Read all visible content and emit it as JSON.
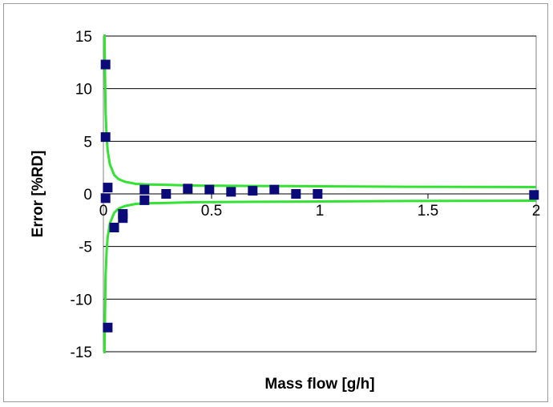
{
  "chart_data": {
    "type": "scatter",
    "xlabel": "Mass flow [g/h]",
    "ylabel": "Error [%RD]",
    "xlim": [
      0,
      2
    ],
    "ylim": [
      -15,
      15
    ],
    "x_ticks": [
      0,
      0.5,
      1,
      1.5,
      2
    ],
    "x_tick_labels": [
      "0",
      "0.5",
      "1",
      "1.5",
      "2"
    ],
    "y_ticks": [
      15,
      10,
      5,
      0,
      -5,
      -10,
      -15
    ],
    "y_tick_labels": [
      "15",
      "10",
      "5",
      "0",
      "-5",
      "-10",
      "-15"
    ],
    "grid": "horizontal",
    "legend": "none",
    "colors": {
      "marker": "#0a0a78",
      "envelope": "#33e233",
      "grid": "#000000"
    },
    "series": [
      {
        "kind": "scatter",
        "marker": "square",
        "x": [
          0.01,
          0.01,
          0.01,
          0.02,
          0.02,
          0.05,
          0.09,
          0.09,
          0.19,
          0.19,
          0.29,
          0.39,
          0.49,
          0.59,
          0.69,
          0.79,
          0.89,
          0.99,
          1.99
        ],
        "y": [
          12.3,
          5.4,
          -0.4,
          0.6,
          -12.7,
          -3.2,
          -1.9,
          -2.3,
          0.4,
          -0.6,
          0.0,
          0.5,
          0.4,
          0.2,
          0.3,
          0.4,
          0.0,
          0.0,
          -0.1
        ]
      },
      {
        "kind": "line",
        "x": [
          0.005,
          0.01,
          0.015,
          0.02,
          0.03,
          0.05,
          0.07,
          0.1,
          0.15,
          0.2,
          0.3,
          0.4,
          0.5,
          0.7,
          1.0,
          1.4,
          2.0
        ],
        "y": [
          15.5,
          7.9,
          5.3,
          4.1,
          2.8,
          1.8,
          1.4,
          1.15,
          0.95,
          0.9,
          0.85,
          0.8,
          0.78,
          0.75,
          0.72,
          0.68,
          0.65
        ]
      },
      {
        "kind": "line",
        "x": [
          0.005,
          0.01,
          0.015,
          0.02,
          0.03,
          0.05,
          0.07,
          0.1,
          0.15,
          0.2,
          0.3,
          0.4,
          0.5,
          0.7,
          1.0,
          1.4,
          2.0
        ],
        "y": [
          -15.5,
          -7.9,
          -5.3,
          -4.1,
          -2.8,
          -1.8,
          -1.4,
          -1.15,
          -0.95,
          -0.9,
          -0.85,
          -0.8,
          -0.78,
          -0.75,
          -0.72,
          -0.68,
          -0.65
        ]
      }
    ]
  }
}
